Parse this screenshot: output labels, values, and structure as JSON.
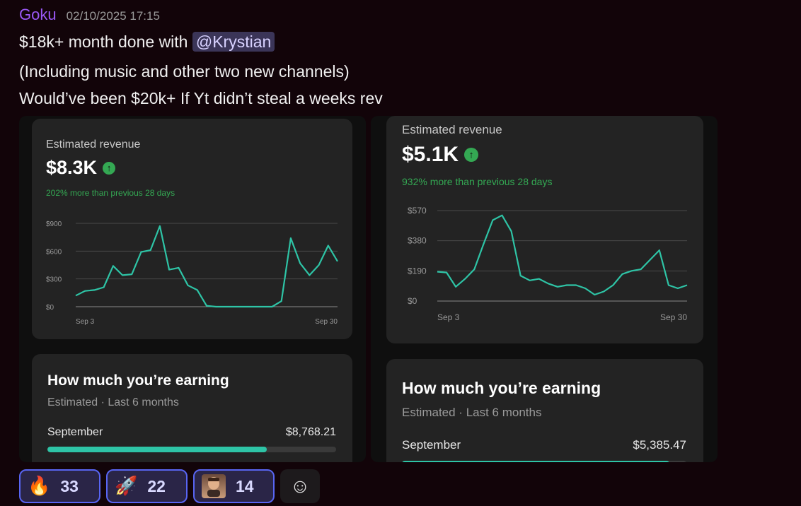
{
  "message": {
    "username": "Goku",
    "timestamp": "02/10/2025 17:15",
    "line1_pre": "$18k+ month done with ",
    "mention": "@Krystian",
    "line2": "(Including music and other two new channels)",
    "line3": "Would’ve been $20k+ If Yt didn’t steal a weeks rev"
  },
  "screenshots": [
    {
      "revenue_label": "Estimated revenue",
      "revenue_value": "$8.3K",
      "delta": "202% more than previous 28 days",
      "earning_title": "How much you’re earning",
      "earning_sub": "Estimated · Last 6 months",
      "month": "September",
      "amount": "$8,768.21",
      "progress": 0.76,
      "chart_data": {
        "type": "line",
        "title": "",
        "x_labels": [
          "Sep 3",
          "Sep 30"
        ],
        "y_ticks": [
          "$0",
          "$300",
          "$600",
          "$900"
        ],
        "ylim": [
          0,
          900
        ],
        "values": [
          120,
          170,
          180,
          210,
          440,
          340,
          350,
          590,
          610,
          870,
          400,
          420,
          230,
          180,
          10,
          0,
          0,
          0,
          0,
          0,
          0,
          0,
          60,
          740,
          470,
          340,
          450,
          660,
          490
        ],
        "color": "#2ec4a6"
      }
    },
    {
      "revenue_label": "Estimated revenue",
      "revenue_value": "$5.1K",
      "delta": "932% more than previous 28 days",
      "earning_title": "How much you’re earning",
      "earning_sub": "Estimated · Last 6 months",
      "month": "September",
      "amount": "$5,385.47",
      "progress": 0.94,
      "chart_data": {
        "type": "line",
        "title": "",
        "x_labels": [
          "Sep 3",
          "Sep 30"
        ],
        "y_ticks": [
          "$0",
          "$190",
          "$380",
          "$570"
        ],
        "ylim": [
          0,
          570
        ],
        "values": [
          185,
          180,
          90,
          140,
          200,
          360,
          510,
          540,
          440,
          160,
          130,
          140,
          110,
          90,
          100,
          100,
          80,
          40,
          60,
          100,
          170,
          190,
          200,
          260,
          320,
          100,
          80,
          100
        ],
        "color": "#2ec4a6"
      }
    }
  ],
  "reactions": [
    {
      "emoji": "🔥",
      "icon": "fire-icon",
      "count": "33"
    },
    {
      "emoji": "🚀",
      "icon": "rocket-icon",
      "count": "22"
    },
    {
      "emoji": "",
      "icon": "avatar-emoji-icon",
      "count": "14"
    }
  ],
  "add_reaction_icon": "☺"
}
